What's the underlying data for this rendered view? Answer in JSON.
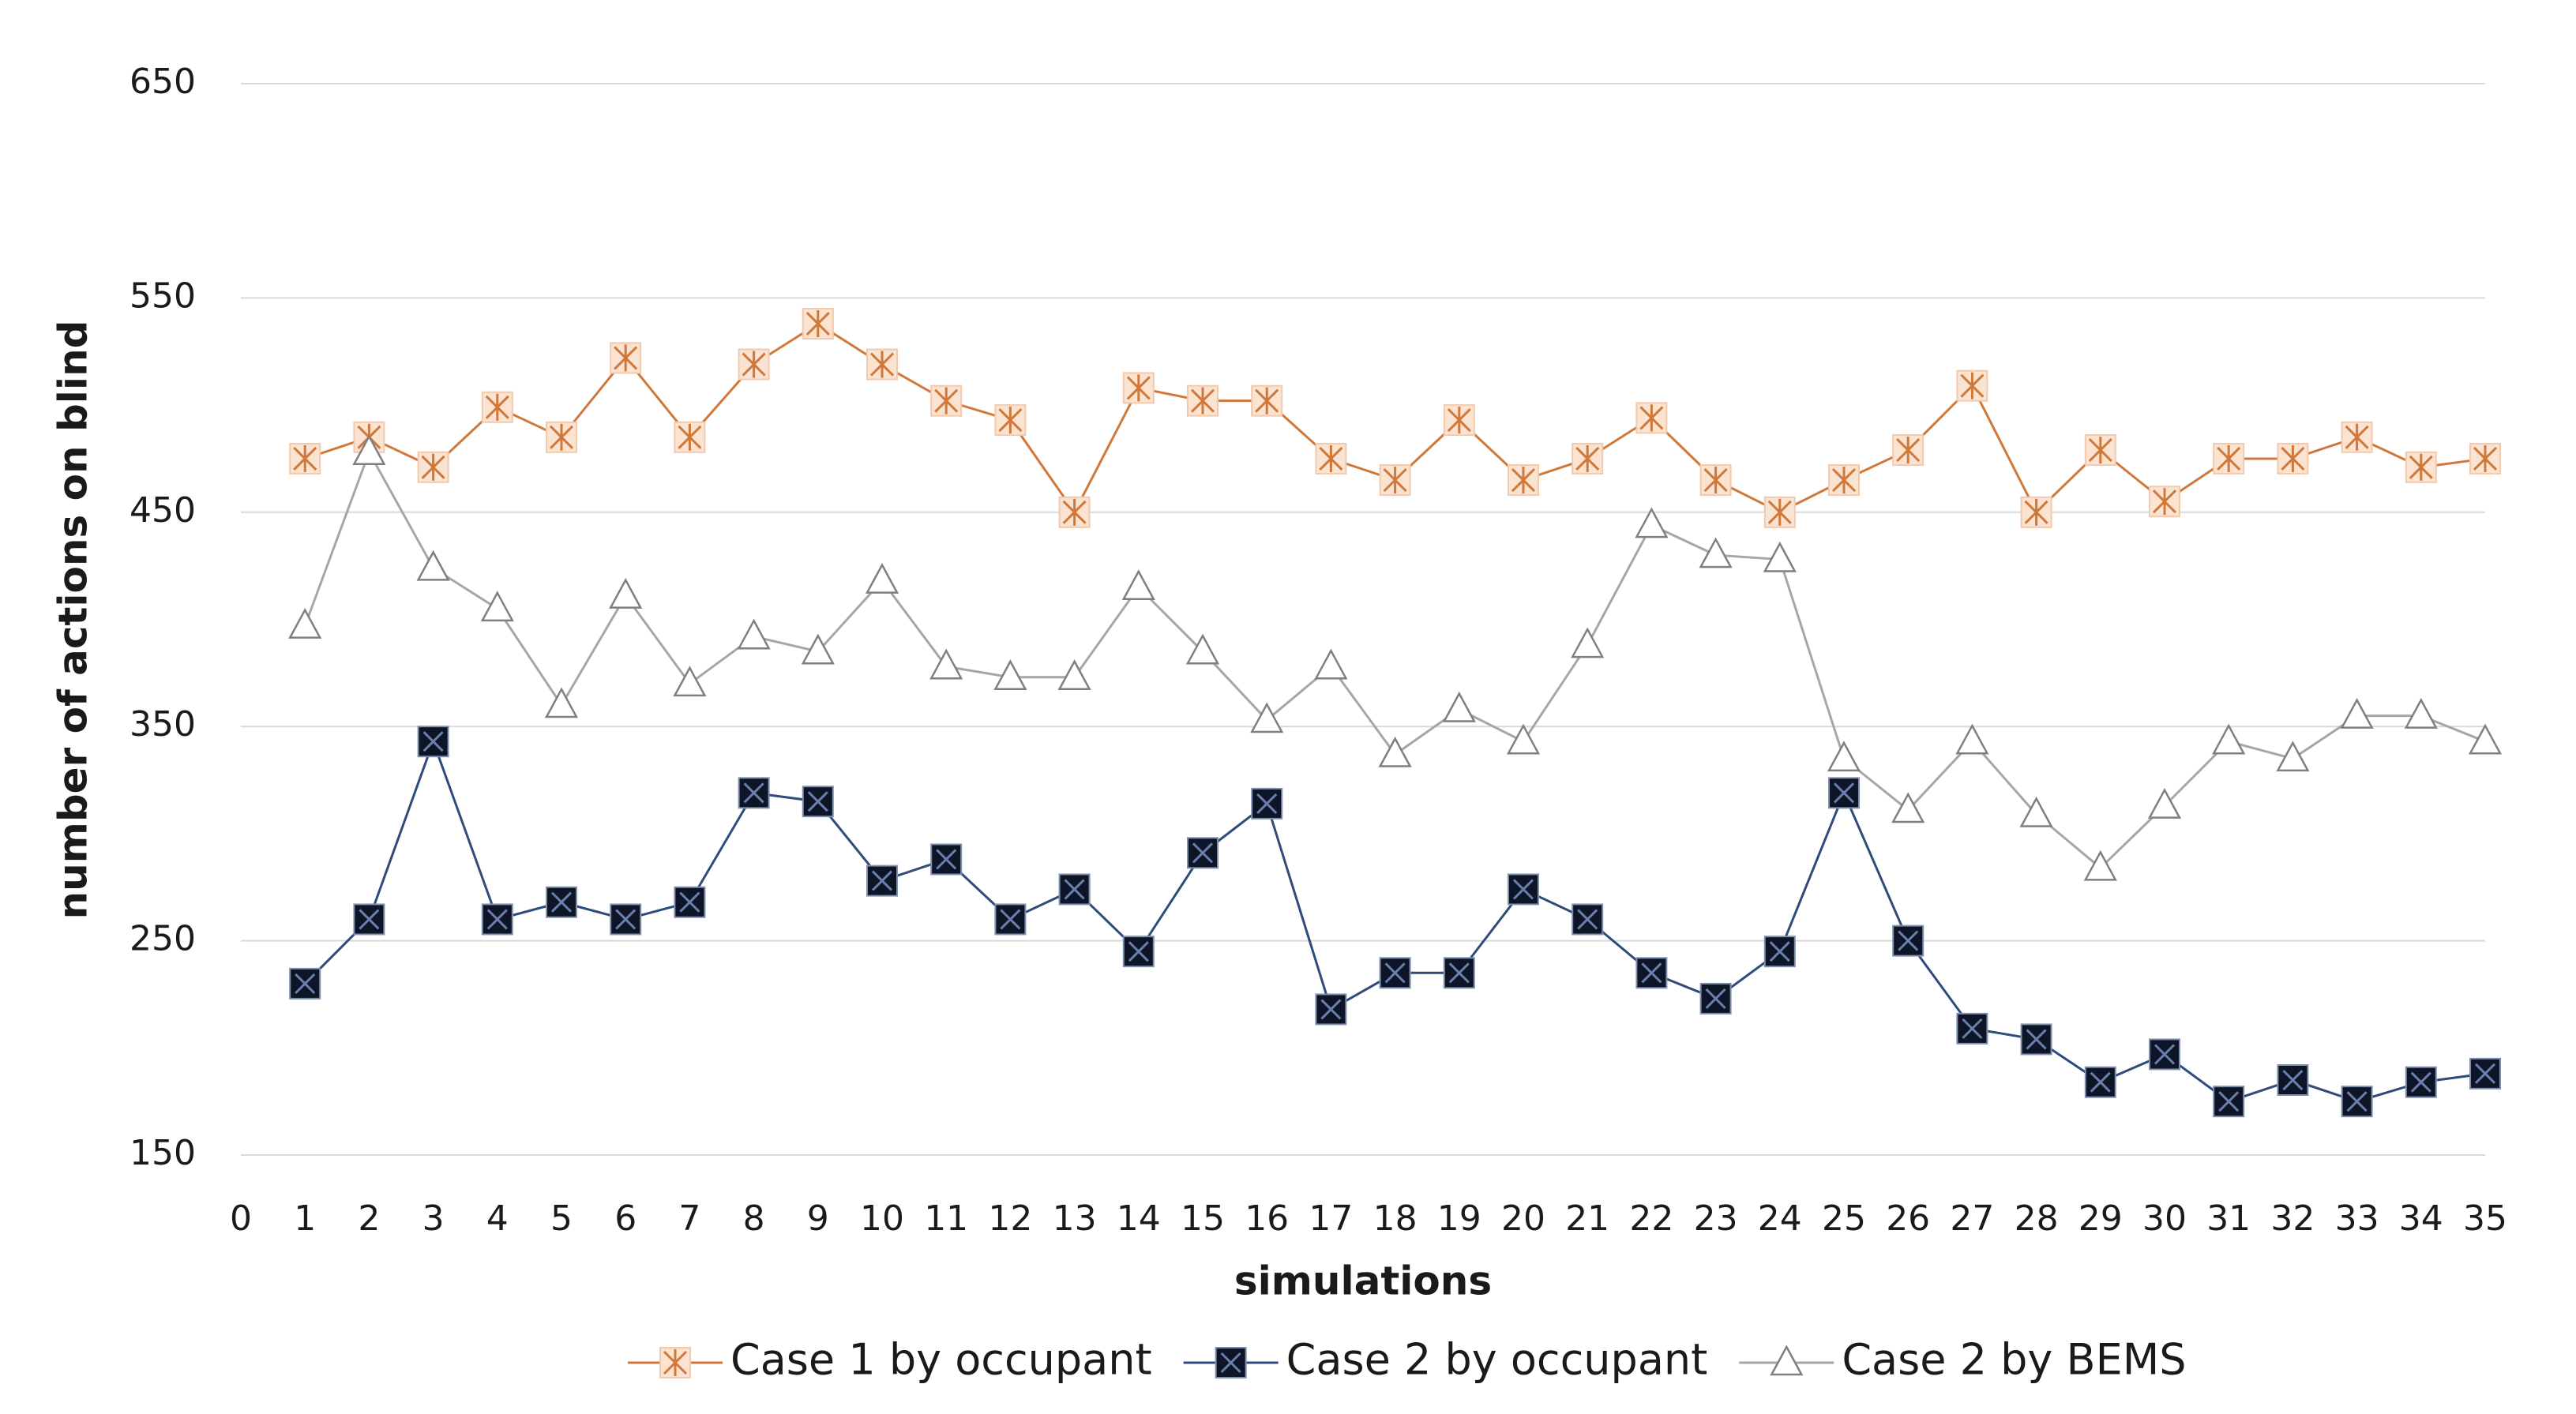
{
  "chart_data": {
    "type": "line",
    "x_label": "simulations",
    "y_label": "number of actions on blind",
    "x": [
      1,
      2,
      3,
      4,
      5,
      6,
      7,
      8,
      9,
      10,
      11,
      12,
      13,
      14,
      15,
      16,
      17,
      18,
      19,
      20,
      21,
      22,
      23,
      24,
      25,
      26,
      27,
      28,
      29,
      30,
      31,
      32,
      33,
      34,
      35
    ],
    "xlim": [
      0,
      35
    ],
    "xticks": [
      0,
      1,
      2,
      3,
      4,
      5,
      6,
      7,
      8,
      9,
      10,
      11,
      12,
      13,
      14,
      15,
      16,
      17,
      18,
      19,
      20,
      21,
      22,
      23,
      24,
      25,
      26,
      27,
      28,
      29,
      30,
      31,
      32,
      33,
      34,
      35
    ],
    "ylim": [
      150,
      650
    ],
    "yticks": [
      150,
      250,
      350,
      450,
      550,
      650
    ],
    "grid": true,
    "legend": "bottom",
    "series": [
      {
        "name": "Case 1 by occupant",
        "color": "#d0783a",
        "marker": "star-square",
        "values": [
          475,
          485,
          471,
          499,
          485,
          522,
          485,
          519,
          538,
          519,
          502,
          493,
          450,
          508,
          502,
          502,
          475,
          465,
          493,
          465,
          475,
          494,
          465,
          450,
          465,
          479,
          509,
          450,
          479,
          455,
          475,
          475,
          485,
          471,
          475
        ]
      },
      {
        "name": "Case 2 by occupant",
        "color": "#2f4b7c",
        "marker": "filled-square",
        "values": [
          230,
          260,
          343,
          260,
          268,
          260,
          268,
          319,
          315,
          278,
          288,
          260,
          274,
          245,
          291,
          314,
          218,
          235,
          235,
          274,
          260,
          235,
          223,
          245,
          319,
          250,
          209,
          204,
          184,
          197,
          175,
          185,
          175,
          184,
          188
        ]
      },
      {
        "name": "Case 2 by BEMS",
        "color": "#a6a6a6",
        "marker": "triangle",
        "values": [
          397,
          478,
          424,
          405,
          360,
          411,
          370,
          392,
          385,
          418,
          378,
          373,
          373,
          415,
          385,
          353,
          378,
          337,
          358,
          343,
          388,
          444,
          430,
          428,
          335,
          311,
          343,
          309,
          284,
          313,
          343,
          335,
          355,
          355,
          343
        ]
      }
    ]
  }
}
